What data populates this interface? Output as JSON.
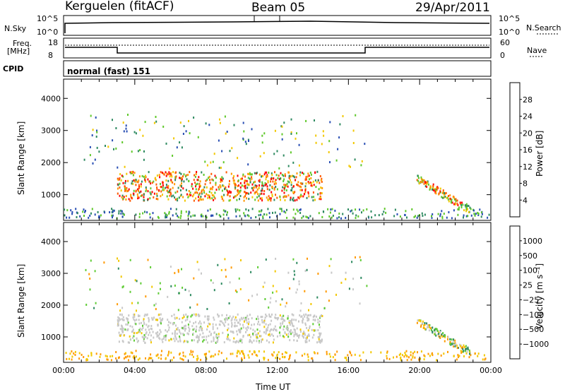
{
  "header": {
    "station": "Kerguelen (fitACF)",
    "beam": "Beam 05",
    "date": "29/Apr/2011"
  },
  "strips": {
    "nsky_label": "N.Sky",
    "nsky_ticks": [
      "10^5",
      "10^0"
    ],
    "nsearch_label": "N.Search",
    "nsearch_ticks": [
      "10^5",
      "10^0"
    ],
    "freq_label_line1": "Freq.",
    "freq_label_line2": "[MHz]",
    "freq_ticks": [
      "18",
      "8"
    ],
    "nave_label": "Nave",
    "nave_ticks": [
      "60",
      "0"
    ],
    "cpid_label": "CPID",
    "cpid_value": "normal (fast) 151"
  },
  "chart_data": [
    {
      "type": "heatmap",
      "name": "power",
      "ylabel": "Slant Range [km]",
      "yticks": [
        1000,
        2000,
        3000,
        4000
      ],
      "ylim": [
        200,
        4600
      ],
      "xlim_hours": [
        0,
        24
      ],
      "colorbar_label": "Power [dB]",
      "colorbar_ticks": [
        "28",
        "24",
        "20",
        "16",
        "12",
        "8",
        "4"
      ],
      "colorbar_colors": [
        "#ff0000",
        "#ff5a00",
        "#ff9a00",
        "#f2c800",
        "#5fc82a",
        "#2e8a60",
        "#2a4fb4",
        "#0000ff"
      ]
    },
    {
      "type": "heatmap",
      "name": "velocity",
      "ylabel": "Slant Range [km]",
      "yticks": [
        1000,
        2000,
        3000,
        4000
      ],
      "ylim": [
        200,
        4600
      ],
      "xlim_hours": [
        0,
        24
      ],
      "xlabel": "Time UT",
      "xticks": [
        "00:00",
        "04:00",
        "08:00",
        "12:00",
        "16:00",
        "20:00",
        "00:00"
      ],
      "colorbar_label": "Velocity [m s⁻¹]",
      "colorbar_ticks": [
        "1000",
        "500",
        "100",
        "25",
        "−25",
        "−100",
        "−500",
        "−1000"
      ],
      "colorbar_colors": [
        "#0000e0",
        "#2a64c8",
        "#2e8a60",
        "#5fcc35",
        "#c8c8c8",
        "#f2c800",
        "#ff9a00",
        "#ff5a00",
        "#ff0000"
      ]
    }
  ]
}
